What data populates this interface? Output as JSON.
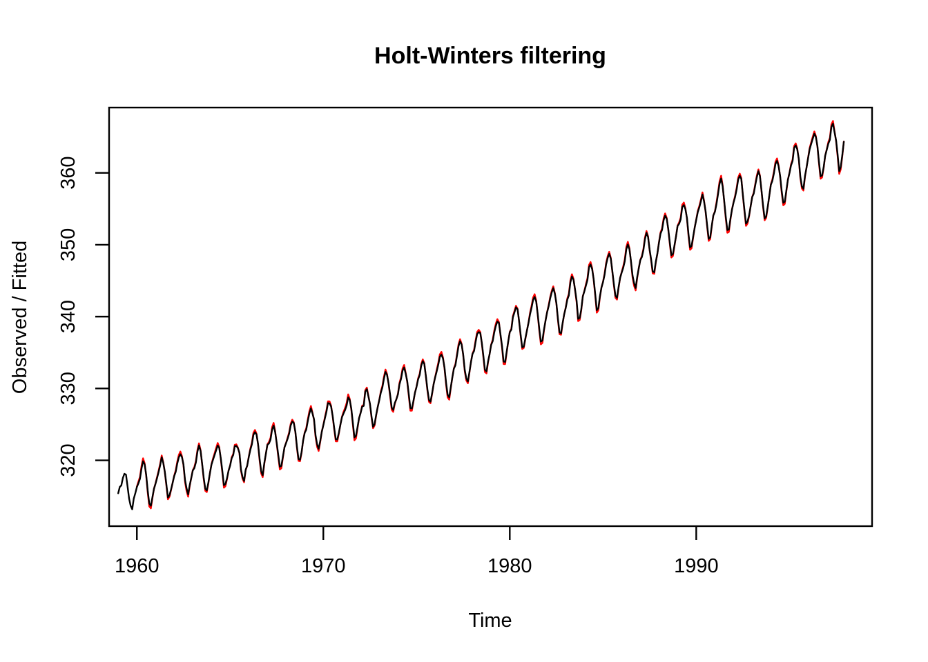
{
  "figure": {
    "background": "#ffffff",
    "text_color": "#000000"
  },
  "chart_data": {
    "type": "line",
    "title": "Holt-Winters filtering",
    "xlabel": "Time",
    "ylabel": "Observed / Fitted",
    "grid": false,
    "legend": "none",
    "x_ticks": [
      1960,
      1970,
      1980,
      1990
    ],
    "y_ticks": [
      320,
      330,
      340,
      350,
      360
    ],
    "xlim": [
      1958.51,
      1999.43
    ],
    "ylim": [
      310.84,
      369.09
    ],
    "frequency": 12,
    "series": [
      {
        "name": "observed",
        "color": "#000000",
        "start_year": 1959,
        "values": [
          315.42,
          316.31,
          316.5,
          317.56,
          318.13,
          318.0,
          316.39,
          314.65,
          313.68,
          313.18,
          314.66,
          315.43,
          316.27,
          316.81,
          317.42,
          318.87,
          319.87,
          319.43,
          318.01,
          315.74,
          314.0,
          313.68,
          314.84,
          316.03,
          316.73,
          317.54,
          318.38,
          319.31,
          320.42,
          319.61,
          318.42,
          316.63,
          314.83,
          315.16,
          315.94,
          316.85,
          317.78,
          318.4,
          319.53,
          320.42,
          320.85,
          320.45,
          319.45,
          317.25,
          316.11,
          315.27,
          316.53,
          317.53,
          318.58,
          318.92,
          319.7,
          321.22,
          322.08,
          321.31,
          319.58,
          317.61,
          316.05,
          315.83,
          316.91,
          318.2,
          319.41,
          320.07,
          320.74,
          321.4,
          322.06,
          321.73,
          320.27,
          318.54,
          316.54,
          316.71,
          317.53,
          318.55,
          319.27,
          320.28,
          320.73,
          321.97,
          322.0,
          321.71,
          321.05,
          318.71,
          317.66,
          317.14,
          318.7,
          319.25,
          320.46,
          321.43,
          322.23,
          323.54,
          323.91,
          323.59,
          322.24,
          320.2,
          318.48,
          317.94,
          319.63,
          320.87,
          322.17,
          322.34,
          322.88,
          324.25,
          324.83,
          323.93,
          322.38,
          320.76,
          319.1,
          319.24,
          320.56,
          321.8,
          322.4,
          322.99,
          323.73,
          324.86,
          325.4,
          325.2,
          323.98,
          321.95,
          320.18,
          320.09,
          321.16,
          322.74,
          323.83,
          324.26,
          325.47,
          326.5,
          327.21,
          326.54,
          325.72,
          323.5,
          322.22,
          321.62,
          322.69,
          323.95,
          324.89,
          325.82,
          326.77,
          327.97,
          327.91,
          327.5,
          326.18,
          324.53,
          322.93,
          322.9,
          323.85,
          324.96,
          326.01,
          326.51,
          327.01,
          327.62,
          328.76,
          328.4,
          327.2,
          325.27,
          323.2,
          323.4,
          324.63,
          325.85,
          326.6,
          327.47,
          327.58,
          329.56,
          329.9,
          328.92,
          327.88,
          326.16,
          324.68,
          325.04,
          326.34,
          327.39,
          328.37,
          329.4,
          330.14,
          331.33,
          332.31,
          331.9,
          330.7,
          329.15,
          327.35,
          327.02,
          327.99,
          328.48,
          329.18,
          330.55,
          331.32,
          332.48,
          332.92,
          332.08,
          331.01,
          329.23,
          327.27,
          327.21,
          328.29,
          329.41,
          330.23,
          331.25,
          331.87,
          333.14,
          333.8,
          333.43,
          331.73,
          329.9,
          328.4,
          328.17,
          329.32,
          330.59,
          331.58,
          332.39,
          333.33,
          334.41,
          334.71,
          334.17,
          332.89,
          330.77,
          329.14,
          328.78,
          330.14,
          331.52,
          332.75,
          333.24,
          334.53,
          335.9,
          336.57,
          336.1,
          334.76,
          332.59,
          331.42,
          330.98,
          332.24,
          333.68,
          334.8,
          335.22,
          336.47,
          337.59,
          337.84,
          337.72,
          336.37,
          334.51,
          332.6,
          332.38,
          333.75,
          334.78,
          336.05,
          336.59,
          337.79,
          338.71,
          339.3,
          339.12,
          337.56,
          335.92,
          333.75,
          333.7,
          335.12,
          336.56,
          337.84,
          338.19,
          339.91,
          340.6,
          341.29,
          341.0,
          339.39,
          337.43,
          335.72,
          335.84,
          336.93,
          338.04,
          339.06,
          340.3,
          341.21,
          342.33,
          342.74,
          342.08,
          340.32,
          338.26,
          336.52,
          336.68,
          338.19,
          339.44,
          340.57,
          341.44,
          342.53,
          343.39,
          343.96,
          343.18,
          341.88,
          339.65,
          337.81,
          337.69,
          339.09,
          340.32,
          341.2,
          342.35,
          342.93,
          344.77,
          345.58,
          345.14,
          343.81,
          342.21,
          339.69,
          339.82,
          340.98,
          342.82,
          343.52,
          344.33,
          345.11,
          346.88,
          347.25,
          346.62,
          345.22,
          343.11,
          340.9,
          341.18,
          342.8,
          344.04,
          344.79,
          345.82,
          347.25,
          348.17,
          348.74,
          348.07,
          346.38,
          344.51,
          342.92,
          342.62,
          344.06,
          345.38,
          346.11,
          346.78,
          347.68,
          349.37,
          350.03,
          349.37,
          347.76,
          345.73,
          344.68,
          343.99,
          345.48,
          346.72,
          347.84,
          348.29,
          349.23,
          350.8,
          351.66,
          351.07,
          349.33,
          347.92,
          346.27,
          346.18,
          347.64,
          348.78,
          350.25,
          351.54,
          352.05,
          353.41,
          354.04,
          353.62,
          352.22,
          350.27,
          348.55,
          348.72,
          349.91,
          351.18,
          352.6,
          352.92,
          353.53,
          355.26,
          355.52,
          354.97,
          353.75,
          351.52,
          349.64,
          349.83,
          351.14,
          352.37,
          353.5,
          354.55,
          355.23,
          356.04,
          357.0,
          356.07,
          354.67,
          352.76,
          350.82,
          351.04,
          352.69,
          354.07,
          354.59,
          355.63,
          357.03,
          358.48,
          359.22,
          358.12,
          356.06,
          353.92,
          352.05,
          352.11,
          353.64,
          354.89,
          355.88,
          356.63,
          357.72,
          359.07,
          359.58,
          359.17,
          356.94,
          354.92,
          352.94,
          353.23,
          354.09,
          355.33,
          356.63,
          357.1,
          358.32,
          359.41,
          360.23,
          359.55,
          357.53,
          355.48,
          353.67,
          353.95,
          355.3,
          356.78,
          358.34,
          358.89,
          359.95,
          361.25,
          361.67,
          360.94,
          359.55,
          357.49,
          355.84,
          356.0,
          357.59,
          359.05,
          359.98,
          361.03,
          361.66,
          363.48,
          363.82,
          363.3,
          361.94,
          359.5,
          358.11,
          357.8,
          359.61,
          360.74,
          362.09,
          363.29,
          364.06,
          364.76,
          365.45,
          365.01,
          363.7,
          361.54,
          359.51,
          359.65,
          360.8,
          362.38,
          363.23,
          364.06,
          364.61,
          366.4,
          366.84,
          365.68,
          364.52,
          362.57,
          360.24,
          360.83,
          362.49,
          364.34
        ]
      },
      {
        "name": "fitted",
        "color": "#FF0000",
        "start_year": 1960,
        "approximation": "observed_plus_monthly_residual_times_year_amplitude",
        "monthly_residual": [
          0.05,
          0.18,
          0.22,
          0.28,
          0.32,
          0.12,
          -0.1,
          -0.22,
          -0.32,
          -0.28,
          -0.12,
          0.02
        ],
        "year_amplitude": [
          1.3,
          0.8,
          1.2,
          0.9,
          1.1,
          0.7,
          1.0,
          1.2,
          0.8,
          1.1,
          0.9,
          1.3,
          0.7,
          1.0,
          1.1,
          0.8,
          1.2,
          0.9,
          1.0,
          1.1,
          0.7,
          1.2,
          0.8,
          1.0,
          1.1,
          0.9,
          1.2,
          0.8,
          1.0,
          1.1,
          0.9,
          1.2,
          1.0,
          0.8,
          1.1,
          0.9,
          1.0,
          1.2
        ]
      }
    ]
  }
}
